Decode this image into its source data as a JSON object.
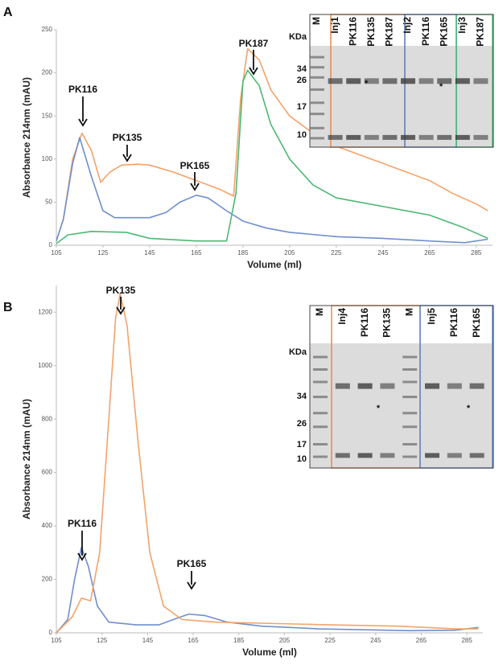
{
  "panel_labels": [
    "A",
    "B"
  ],
  "chart_data": [
    {
      "type": "line",
      "xlabel": "Volume (ml)",
      "ylabel": "Absorbance 214nm (mAU)",
      "xlim": [
        105,
        292
      ],
      "xticks": [
        105,
        125,
        145,
        165,
        185,
        205,
        225,
        245,
        265,
        285
      ],
      "ylim": [
        0,
        250
      ],
      "yticks": [
        0,
        50,
        100,
        150,
        200,
        250
      ],
      "annotations": [
        "PK116",
        "PK135",
        "PK165",
        "PK187"
      ],
      "series": [
        {
          "color": "#f4a26a",
          "x": [
            105,
            108,
            112,
            116,
            120,
            124,
            128,
            133,
            140,
            145,
            155,
            165,
            175,
            181,
            184,
            187,
            192,
            197,
            205,
            215,
            225,
            235,
            245,
            255,
            265,
            275,
            285,
            290
          ],
          "values": [
            5,
            30,
            100,
            130,
            110,
            73,
            85,
            93,
            94,
            93,
            85,
            75,
            65,
            57,
            170,
            228,
            215,
            180,
            150,
            130,
            115,
            105,
            95,
            85,
            75,
            60,
            48,
            40
          ]
        },
        {
          "color": "#6f8fcf",
          "x": [
            105,
            108,
            112,
            115,
            120,
            125,
            130,
            145,
            152,
            158,
            165,
            170,
            178,
            185,
            195,
            205,
            225,
            245,
            265,
            280,
            290
          ],
          "values": [
            5,
            30,
            95,
            125,
            80,
            40,
            32,
            32,
            38,
            50,
            58,
            55,
            40,
            28,
            20,
            15,
            10,
            8,
            5,
            3,
            7
          ]
        },
        {
          "color": "#4cb872",
          "x": [
            105,
            110,
            120,
            135,
            145,
            165,
            178,
            182,
            185,
            187,
            192,
            197,
            205,
            215,
            225,
            245,
            265,
            280,
            290
          ],
          "values": [
            2,
            12,
            16,
            15,
            8,
            5,
            5,
            60,
            190,
            203,
            185,
            140,
            100,
            70,
            55,
            45,
            35,
            20,
            8
          ]
        }
      ]
    },
    {
      "type": "line",
      "xlabel": "Volume (ml)",
      "ylabel": "Absorbance 214nm (mAU)",
      "xlim": [
        105,
        292
      ],
      "xticks": [
        105,
        125,
        145,
        165,
        185,
        205,
        225,
        245,
        265,
        285
      ],
      "ylim": [
        0,
        1300
      ],
      "yticks": [
        0,
        200,
        400,
        600,
        800,
        1000,
        1200
      ],
      "annotations": [
        "PK135",
        "PK116",
        "PK165"
      ],
      "series": [
        {
          "color": "#6f8fcf",
          "x": [
            105,
            110,
            113,
            116,
            119,
            123,
            128,
            140,
            150,
            158,
            163,
            170,
            180,
            195,
            220,
            260,
            280,
            290
          ],
          "values": [
            0,
            50,
            200,
            320,
            250,
            100,
            40,
            30,
            30,
            55,
            70,
            65,
            40,
            25,
            15,
            8,
            10,
            20
          ]
        },
        {
          "color": "#f4a26a",
          "x": [
            105,
            112,
            116,
            120,
            124,
            128,
            131,
            133,
            136,
            141,
            146,
            152,
            160,
            175,
            200,
            225,
            255,
            280,
            290
          ],
          "values": [
            0,
            60,
            130,
            120,
            300,
            800,
            1180,
            1270,
            1150,
            700,
            300,
            100,
            50,
            40,
            35,
            30,
            25,
            15,
            15
          ]
        }
      ]
    }
  ],
  "gels": [
    {
      "lanes": [
        "M",
        "Inj1",
        "PK116",
        "PK135",
        "PK187",
        "Inj2",
        "PK116",
        "PK165",
        "Inj3",
        "PK187"
      ],
      "markers": [
        "KDa",
        "34",
        "26",
        "17",
        "10"
      ],
      "stars": [
        "*",
        "*"
      ]
    },
    {
      "lanes": [
        "M",
        "Inj4",
        "PK116",
        "PK135",
        "M",
        "Inj5",
        "PK116",
        "PK165"
      ],
      "markers": [
        "KDa",
        "34",
        "26",
        "17",
        "10"
      ],
      "stars": [
        "*",
        "*"
      ]
    }
  ]
}
